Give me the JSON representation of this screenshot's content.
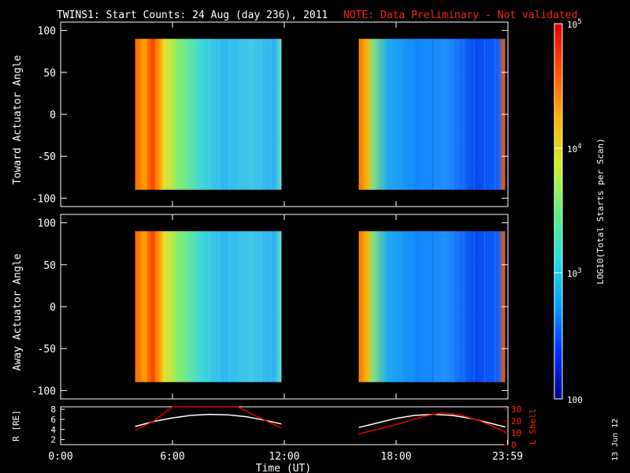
{
  "header": {
    "title": "TWINS1: Start Counts: 24 Aug (day 236), 2011",
    "note": "NOTE: Data Preliminary - Not validated"
  },
  "stamp": "13 Jun 12",
  "colorbar": {
    "label": "LOG10(Total Starts per Scan)",
    "tick_labels": [
      "10^5",
      "10^4",
      "10^3",
      "100"
    ],
    "color_stops": [
      "#00008c",
      "#0030ff",
      "#00a0ff",
      "#20e0e0",
      "#60f080",
      "#d0f020",
      "#ffb000",
      "#ff5000",
      "#e00000"
    ]
  },
  "chart_data": [
    {
      "type": "heatmap",
      "panel": "toward",
      "ylabel": "Toward Actuator Angle",
      "xlim": [
        0,
        24
      ],
      "ylim": [
        -110,
        110
      ],
      "y_tick_labels": [
        "100",
        "50",
        "0",
        "-50",
        "-100"
      ],
      "data_segments": [
        {
          "x_start": 4.0,
          "x_end": 11.85,
          "y_range": [
            -90,
            90
          ]
        },
        {
          "x_start": 16.0,
          "x_end": 23.85,
          "y_range": [
            -90,
            90
          ]
        }
      ],
      "zlim": [
        100,
        100000
      ],
      "z_scale": "log"
    },
    {
      "type": "heatmap",
      "panel": "away",
      "ylabel": "Away Actuator Angle",
      "xlim": [
        0,
        24
      ],
      "ylim": [
        -110,
        110
      ],
      "y_tick_labels": [
        "100",
        "50",
        "0",
        "-50",
        "-100"
      ],
      "data_segments": [
        {
          "x_start": 4.0,
          "x_end": 11.85,
          "y_range": [
            -90,
            90
          ]
        },
        {
          "x_start": 16.0,
          "x_end": 23.85,
          "y_range": [
            -90,
            90
          ]
        }
      ],
      "zlim": [
        100,
        100000
      ],
      "z_scale": "log"
    },
    {
      "type": "line",
      "panel": "ephemeris",
      "xlabel": "Time (UT)",
      "x_tick_labels": [
        "0:00",
        "6:00",
        "12:00",
        "18:00",
        "23:59"
      ],
      "x_ticks": [
        0,
        6,
        12,
        18,
        23.98
      ],
      "xlim": [
        0,
        24
      ],
      "y_left_label": "R [RE]",
      "y_left_ticks": [
        "8",
        "6",
        "4",
        "2"
      ],
      "ylim_left": [
        1,
        8.5
      ],
      "y_right_label": "L Shell",
      "y_right_ticks": [
        "30",
        "20",
        "10",
        "0"
      ],
      "ylim_right": [
        0,
        32
      ],
      "series": [
        {
          "name": "R [RE]",
          "axis": "left",
          "color": "#ffffff",
          "x": [
            4.0,
            5.0,
            6.0,
            7.0,
            8.0,
            9.0,
            10.0,
            11.0,
            11.85,
            16.0,
            17.0,
            18.0,
            19.0,
            20.0,
            21.0,
            22.0,
            23.0,
            23.85
          ],
          "y": [
            4.6,
            5.6,
            6.3,
            6.8,
            7.0,
            6.9,
            6.5,
            5.8,
            5.1,
            4.4,
            5.3,
            6.2,
            6.8,
            7.0,
            6.8,
            6.2,
            5.3,
            4.5
          ]
        },
        {
          "name": "L Shell",
          "axis": "right",
          "color": "#e00000",
          "x": [
            4.0,
            5.0,
            6.0,
            9.5,
            10.5,
            11.85,
            16.0,
            18.0,
            19.5,
            20.5,
            21.5,
            22.5,
            23.85
          ],
          "y": [
            12,
            20,
            32,
            32,
            24,
            14,
            9,
            17,
            24,
            27,
            25,
            20,
            11
          ]
        }
      ]
    }
  ]
}
